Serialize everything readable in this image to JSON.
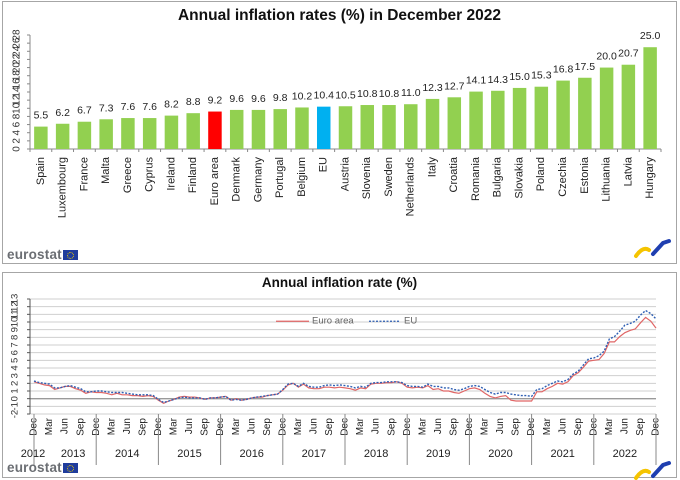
{
  "brand": {
    "logo_text": "eurostat",
    "logo_icon": "eu-flag-icon",
    "swoosh_icon": "eurostat-swoosh-icon"
  },
  "chart_data": [
    {
      "type": "bar",
      "title": "Annual inflation rates (%) in December 2022",
      "xlabel": "",
      "ylabel": "",
      "ylim": [
        0,
        28
      ],
      "yticks": [
        0,
        2,
        4,
        6,
        8,
        10,
        12,
        14,
        16,
        18,
        20,
        22,
        24,
        26,
        28
      ],
      "grid": false,
      "categories": [
        "Spain",
        "Luxembourg",
        "France",
        "Malta",
        "Greece",
        "Cyprus",
        "Ireland",
        "Finland",
        "Euro area",
        "Denmark",
        "Germany",
        "Portugal",
        "Belgium",
        "EU",
        "Austria",
        "Slovenia",
        "Sweden",
        "Netherlands",
        "Italy",
        "Croatia",
        "Romania",
        "Bulgaria",
        "Slovakia",
        "Poland",
        "Czechia",
        "Estonia",
        "Lithuania",
        "Latvia",
        "Hungary"
      ],
      "values": [
        5.5,
        6.2,
        6.7,
        7.3,
        7.6,
        7.6,
        8.2,
        8.8,
        9.2,
        9.6,
        9.6,
        9.8,
        10.2,
        10.4,
        10.5,
        10.8,
        10.8,
        11.0,
        12.3,
        12.7,
        14.1,
        14.3,
        15.0,
        15.3,
        16.8,
        17.5,
        20.0,
        20.7,
        25.0
      ],
      "data_labels": [
        "5.5",
        "6.2",
        "6.7",
        "7.3",
        "7.6",
        "7.6",
        "8.2",
        "8.8",
        "9.2",
        "9.6",
        "9.6",
        "9.8",
        "10.2",
        "10.4",
        "10.5",
        "10.8",
        "10.8",
        "11.0",
        "12.3",
        "12.7",
        "14.1",
        "14.3",
        "15.0",
        "15.3",
        "16.8",
        "17.5",
        "20.0",
        "20.7",
        "25.0"
      ],
      "colors": {
        "default": "#92d050",
        "Euro area": "#ff0000",
        "EU": "#00b0f0"
      }
    },
    {
      "type": "line",
      "title": "Annual inflation rate (%)",
      "xlabel": "",
      "ylabel": "",
      "ylim": [
        -2,
        13
      ],
      "yticks": [
        -2,
        -1,
        0,
        1,
        2,
        3,
        4,
        5,
        6,
        7,
        8,
        9,
        10,
        11,
        12,
        13
      ],
      "grid": true,
      "legend": "top-center",
      "x_start": "Dec 2012",
      "x_end": "Dec 2022",
      "x_frequency": "monthly",
      "month_tick_labels": [
        "Dec",
        "Mar",
        "Jun",
        "Sep"
      ],
      "year_labels": [
        "2012",
        "2013",
        "2014",
        "2015",
        "2016",
        "2017",
        "2018",
        "2019",
        "2020",
        "2021",
        "2022"
      ],
      "series": [
        {
          "name": "Euro area",
          "color": "#e06666",
          "style": "solid",
          "values": [
            2.2,
            2.0,
            1.8,
            1.7,
            1.2,
            1.4,
            1.6,
            1.6,
            1.3,
            1.1,
            0.7,
            0.9,
            0.8,
            0.8,
            0.7,
            0.5,
            0.7,
            0.5,
            0.5,
            0.4,
            0.4,
            0.3,
            0.4,
            0.3,
            -0.2,
            -0.6,
            -0.3,
            -0.1,
            0.2,
            0.3,
            0.2,
            0.2,
            0.1,
            -0.1,
            0.1,
            0.1,
            0.2,
            0.3,
            -0.2,
            0.0,
            -0.2,
            -0.1,
            0.1,
            0.2,
            0.2,
            0.4,
            0.5,
            0.6,
            1.1,
            1.8,
            2.0,
            1.5,
            1.9,
            1.4,
            1.3,
            1.3,
            1.5,
            1.5,
            1.4,
            1.5,
            1.4,
            1.3,
            1.1,
            1.4,
            1.3,
            1.9,
            2.0,
            2.0,
            2.1,
            2.1,
            2.2,
            2.0,
            1.5,
            1.4,
            1.5,
            1.4,
            1.7,
            1.2,
            1.3,
            1.0,
            1.0,
            0.8,
            0.7,
            1.0,
            1.3,
            1.4,
            1.2,
            0.7,
            0.3,
            0.1,
            0.3,
            0.4,
            -0.2,
            -0.3,
            -0.3,
            -0.3,
            -0.3,
            0.9,
            0.9,
            1.3,
            1.6,
            2.0,
            1.9,
            2.2,
            3.0,
            3.4,
            4.1,
            4.9,
            5.0,
            5.1,
            5.9,
            7.4,
            7.4,
            8.1,
            8.6,
            8.9,
            9.1,
            9.9,
            10.6,
            10.1,
            9.2
          ]
        },
        {
          "name": "EU",
          "color": "#2f5fb3",
          "style": "dotted",
          "values": [
            2.3,
            2.1,
            2.0,
            1.9,
            1.4,
            1.4,
            1.6,
            1.7,
            1.5,
            1.3,
            0.9,
            0.9,
            1.0,
            1.0,
            0.9,
            0.8,
            0.8,
            0.8,
            0.7,
            0.6,
            0.5,
            0.5,
            0.5,
            0.4,
            -0.1,
            -0.5,
            -0.3,
            -0.1,
            0.1,
            0.2,
            0.1,
            0.1,
            0.1,
            -0.1,
            0.1,
            0.1,
            0.2,
            0.3,
            -0.2,
            -0.1,
            -0.2,
            -0.1,
            0.1,
            0.2,
            0.3,
            0.4,
            0.5,
            0.6,
            1.2,
            1.9,
            2.0,
            1.6,
            2.0,
            1.6,
            1.5,
            1.5,
            1.7,
            1.8,
            1.7,
            1.8,
            1.7,
            1.6,
            1.4,
            1.6,
            1.5,
            2.0,
            2.1,
            2.1,
            2.2,
            2.2,
            2.2,
            2.1,
            1.7,
            1.6,
            1.6,
            1.5,
            1.9,
            1.6,
            1.6,
            1.4,
            1.4,
            1.2,
            1.1,
            1.3,
            1.6,
            1.7,
            1.6,
            1.2,
            0.8,
            0.6,
            0.8,
            0.8,
            0.6,
            0.5,
            0.4,
            0.4,
            0.3,
            1.2,
            1.3,
            1.7,
            2.0,
            2.3,
            2.2,
            2.5,
            3.2,
            3.6,
            4.4,
            5.2,
            5.3,
            5.6,
            6.2,
            7.8,
            8.1,
            8.8,
            9.6,
            9.8,
            10.1,
            10.9,
            11.5,
            11.1,
            10.4
          ]
        }
      ]
    }
  ]
}
